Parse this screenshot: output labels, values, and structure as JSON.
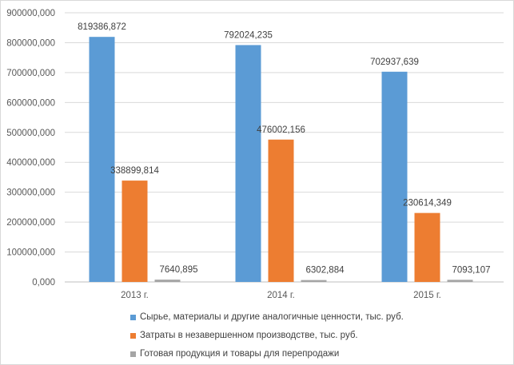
{
  "chart_data": {
    "type": "bar",
    "title": "",
    "xlabel": "",
    "ylabel": "",
    "categories": [
      "2013 г.",
      "2014 г.",
      "2015 г."
    ],
    "ylim": [
      0,
      900000
    ],
    "yticks": [
      0,
      100000,
      200000,
      300000,
      400000,
      500000,
      600000,
      700000,
      800000,
      900000
    ],
    "ytick_labels": [
      "0,000",
      "100000,000",
      "200000,000",
      "300000,000",
      "400000,000",
      "500000,000",
      "600000,000",
      "700000,000",
      "800000,000",
      "900000,000"
    ],
    "grid": true,
    "legend_position": "bottom",
    "series": [
      {
        "name": "Сырье, материалы и другие аналогичные ценности, тыс. руб.",
        "color": "#5b9bd5",
        "values": [
          819386.872,
          792024.235,
          702937.639
        ],
        "labels": [
          "819386,872",
          "792024,235",
          "702937,639"
        ]
      },
      {
        "name": "Затраты в незавершенном производстве, тыс. руб.",
        "color": "#ed7d31",
        "values": [
          338899.814,
          476002.156,
          230614.349
        ],
        "labels": [
          "338899,814",
          "476002,156",
          "230614,349"
        ]
      },
      {
        "name": "Готовая продукция и товары для перепродажи",
        "color": "#a5a5a5",
        "values": [
          7640.895,
          6302.884,
          7093.107
        ],
        "labels": [
          "7640,895",
          "6302,884",
          "7093,107"
        ]
      }
    ]
  }
}
